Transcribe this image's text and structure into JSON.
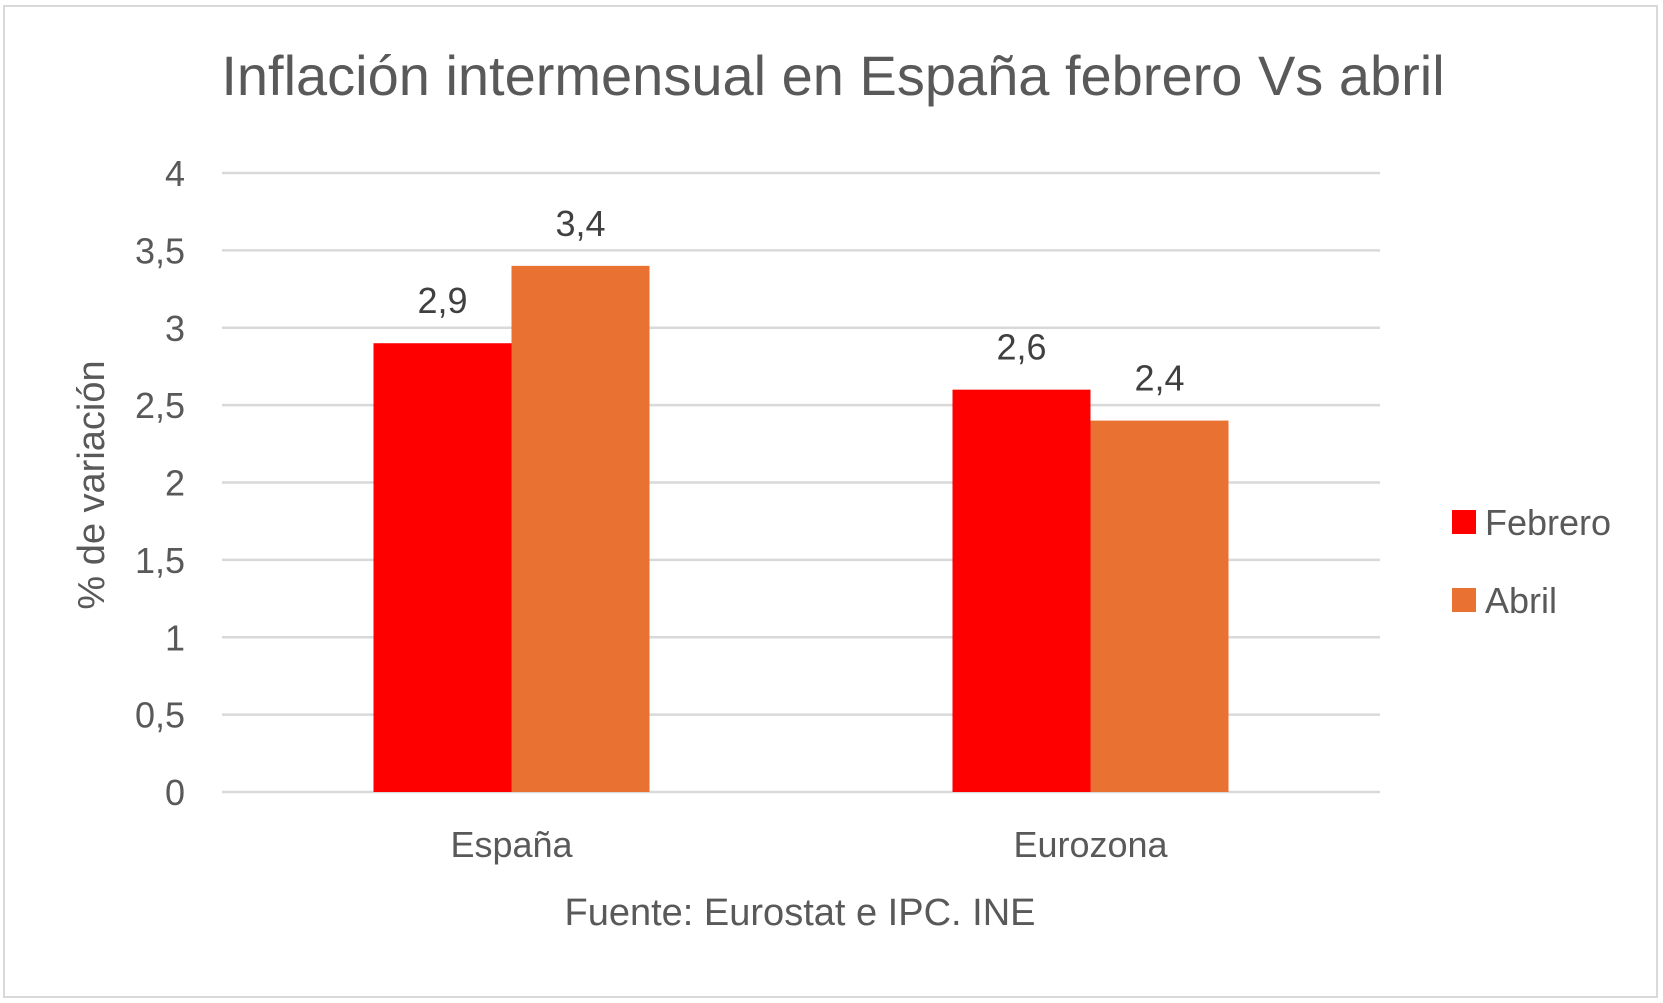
{
  "chart_data": {
    "type": "bar",
    "title": "Inflación intermensual en España febrero Vs abril",
    "ylabel": "% de variación",
    "xlabel": "Fuente: Eurostat e IPC. INE",
    "categories": [
      "España",
      "Eurozona"
    ],
    "series": [
      {
        "name": "Febrero",
        "values": [
          2.9,
          2.6
        ],
        "labels": [
          "2,9",
          "2,6"
        ],
        "color": "#ff0000"
      },
      {
        "name": "Abril",
        "values": [
          3.4,
          2.4
        ],
        "labels": [
          "3,4",
          "2,4"
        ],
        "color": "#e97132"
      }
    ],
    "ylim": [
      0,
      4
    ],
    "yticks": [
      0,
      0.5,
      1,
      1.5,
      2,
      2.5,
      3,
      3.5,
      4
    ],
    "ytick_labels": [
      "0",
      "0,5",
      "1",
      "1,5",
      "2",
      "2,5",
      "3",
      "3,5",
      "4"
    ],
    "grid": true,
    "legend_position": "right"
  }
}
